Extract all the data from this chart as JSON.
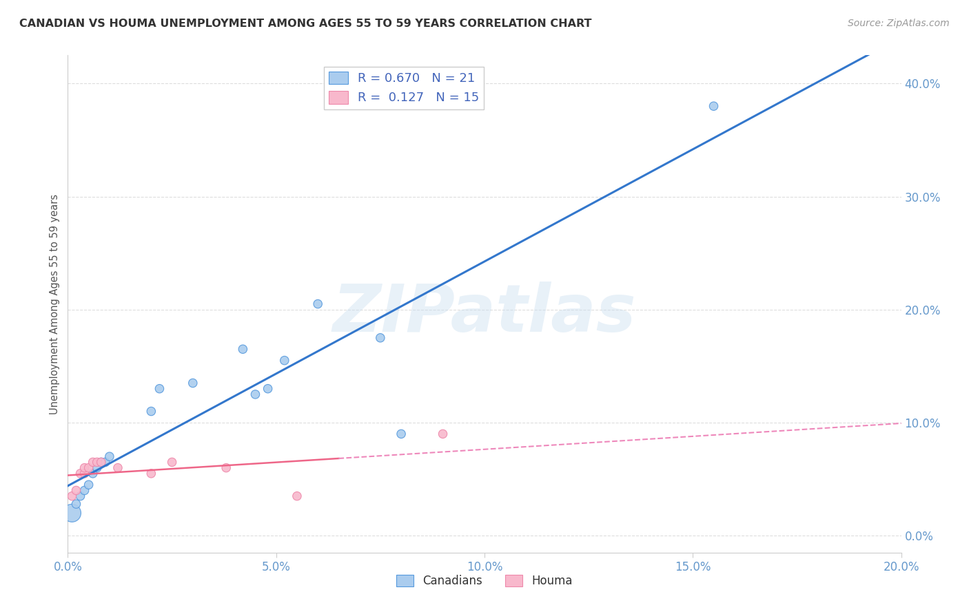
{
  "title": "CANADIAN VS HOUMA UNEMPLOYMENT AMONG AGES 55 TO 59 YEARS CORRELATION CHART",
  "source": "Source: ZipAtlas.com",
  "ylabel": "Unemployment Among Ages 55 to 59 years",
  "xlim": [
    0.0,
    0.2
  ],
  "ylim": [
    -0.015,
    0.425
  ],
  "xticks": [
    0.0,
    0.05,
    0.1,
    0.15,
    0.2
  ],
  "yticks_right": [
    0.0,
    0.1,
    0.2,
    0.3,
    0.4
  ],
  "canadian_color": "#aaccee",
  "houma_color": "#f8b8cc",
  "canadian_edge_color": "#5599dd",
  "houma_edge_color": "#ee88aa",
  "canadian_line_color": "#3377cc",
  "houma_solid_color": "#ee6688",
  "houma_dash_color": "#ee88bb",
  "r_canadian": 0.67,
  "n_canadian": 21,
  "r_houma": 0.127,
  "n_houma": 15,
  "background_color": "#ffffff",
  "watermark": "ZIPatlas",
  "canadian_x": [
    0.001,
    0.002,
    0.003,
    0.004,
    0.005,
    0.006,
    0.007,
    0.008,
    0.009,
    0.01,
    0.02,
    0.022,
    0.03,
    0.042,
    0.045,
    0.048,
    0.052,
    0.06,
    0.075,
    0.08,
    0.155
  ],
  "canadian_y": [
    0.02,
    0.028,
    0.035,
    0.04,
    0.045,
    0.055,
    0.06,
    0.065,
    0.065,
    0.07,
    0.11,
    0.13,
    0.135,
    0.165,
    0.125,
    0.13,
    0.155,
    0.205,
    0.175,
    0.09,
    0.38
  ],
  "canadian_sizes": [
    350,
    80,
    80,
    80,
    80,
    80,
    80,
    80,
    80,
    80,
    80,
    80,
    80,
    80,
    80,
    80,
    80,
    80,
    80,
    80,
    80
  ],
  "houma_x": [
    0.001,
    0.002,
    0.003,
    0.004,
    0.004,
    0.005,
    0.006,
    0.007,
    0.008,
    0.012,
    0.02,
    0.025,
    0.038,
    0.055,
    0.09
  ],
  "houma_y": [
    0.035,
    0.04,
    0.055,
    0.055,
    0.06,
    0.06,
    0.065,
    0.065,
    0.065,
    0.06,
    0.055,
    0.065,
    0.06,
    0.035,
    0.09
  ],
  "houma_sizes": [
    80,
    80,
    80,
    80,
    80,
    80,
    80,
    80,
    80,
    80,
    80,
    80,
    80,
    80,
    80
  ],
  "grid_color": "#dddddd",
  "tick_color": "#6699cc",
  "title_color": "#333333",
  "source_color": "#999999",
  "ylabel_color": "#555555"
}
